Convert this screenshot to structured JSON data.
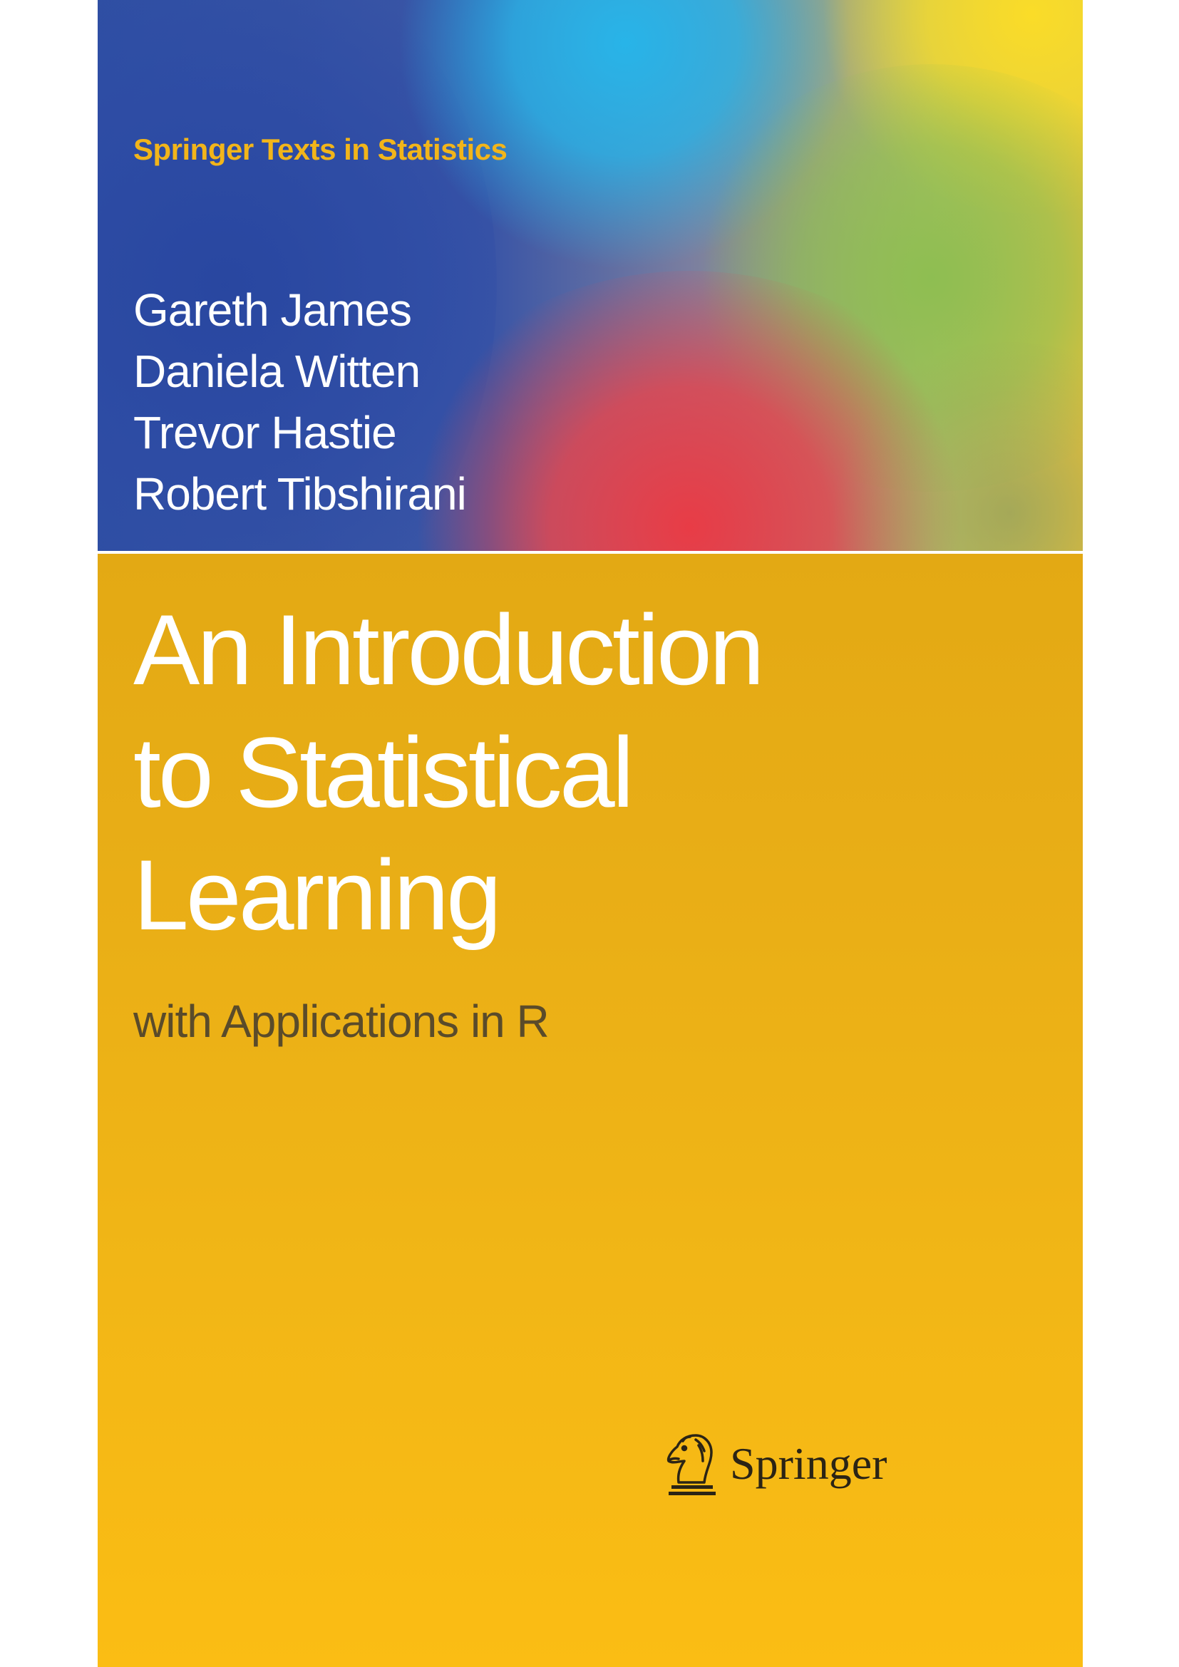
{
  "cover": {
    "series": "Springer Texts in Statistics",
    "authors": [
      "Gareth James",
      "Daniela Witten",
      "Trevor Hastie",
      "Robert Tibshirani"
    ],
    "title_lines": [
      "An Introduction",
      "to Statistical",
      "Learning"
    ],
    "subtitle": "with Applications in R",
    "publisher": "Springer",
    "publisher_logo_icon": "knight-chess-piece-icon"
  },
  "colors": {
    "top_band_blue": "#2f4fa3",
    "top_band_cyan": "#28b4e8",
    "top_band_red": "#e83c46",
    "top_band_yellow": "#fadc28",
    "bottom_band_yellow": "#f0b516",
    "series_text": "#f2b51a",
    "subtitle_text": "#5a4b2a",
    "title_text": "#ffffff"
  }
}
